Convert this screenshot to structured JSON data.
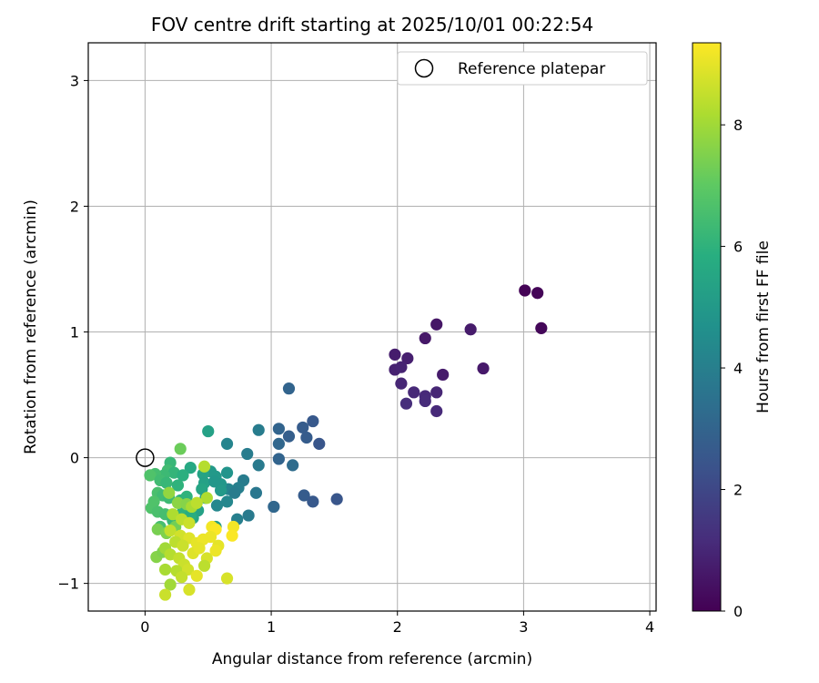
{
  "chart_data": {
    "type": "scatter",
    "title": "FOV centre drift starting at 2025/10/01 00:22:54",
    "xlabel": "Angular distance from reference (arcmin)",
    "ylabel": "Rotation from reference (arcmin)",
    "xlim": [
      -0.45,
      4.05
    ],
    "ylim": [
      -1.22,
      3.3
    ],
    "xticks": [
      0,
      1,
      2,
      3,
      4
    ],
    "yticks": [
      -1,
      0,
      1,
      2,
      3
    ],
    "grid": true,
    "legend": {
      "position": "top-right",
      "label": "Reference platepar"
    },
    "reference_point": {
      "x": 0,
      "y": 0
    },
    "colorbar": {
      "label": "Hours from first FF file",
      "min": 0,
      "max": 9.35,
      "ticks": [
        0,
        2,
        4,
        6,
        8
      ],
      "colormap": "viridis"
    },
    "points": [
      {
        "x": 3.01,
        "y": 1.33,
        "c": 0.05
      },
      {
        "x": 3.11,
        "y": 1.31,
        "c": 0.1
      },
      {
        "x": 3.14,
        "y": 1.03,
        "c": 0.15
      },
      {
        "x": 2.31,
        "y": 1.06,
        "c": 0.55
      },
      {
        "x": 2.58,
        "y": 1.02,
        "c": 0.7
      },
      {
        "x": 2.22,
        "y": 0.95,
        "c": 0.6
      },
      {
        "x": 1.98,
        "y": 0.82,
        "c": 0.75
      },
      {
        "x": 2.08,
        "y": 0.79,
        "c": 0.8
      },
      {
        "x": 1.98,
        "y": 0.7,
        "c": 0.85
      },
      {
        "x": 2.03,
        "y": 0.72,
        "c": 0.9
      },
      {
        "x": 2.68,
        "y": 0.71,
        "c": 0.65
      },
      {
        "x": 2.36,
        "y": 0.66,
        "c": 0.7
      },
      {
        "x": 2.03,
        "y": 0.59,
        "c": 1.0
      },
      {
        "x": 2.13,
        "y": 0.52,
        "c": 1.05
      },
      {
        "x": 2.22,
        "y": 0.49,
        "c": 1.1
      },
      {
        "x": 2.31,
        "y": 0.52,
        "c": 1.0
      },
      {
        "x": 2.22,
        "y": 0.45,
        "c": 1.15
      },
      {
        "x": 2.07,
        "y": 0.43,
        "c": 1.2
      },
      {
        "x": 2.31,
        "y": 0.37,
        "c": 1.1
      },
      {
        "x": 1.14,
        "y": 0.55,
        "c": 3.0
      },
      {
        "x": 1.33,
        "y": 0.29,
        "c": 2.6
      },
      {
        "x": 1.25,
        "y": 0.24,
        "c": 2.7
      },
      {
        "x": 1.06,
        "y": 0.23,
        "c": 3.0
      },
      {
        "x": 1.14,
        "y": 0.17,
        "c": 2.8
      },
      {
        "x": 1.28,
        "y": 0.16,
        "c": 2.7
      },
      {
        "x": 1.06,
        "y": 0.11,
        "c": 3.1
      },
      {
        "x": 1.38,
        "y": 0.11,
        "c": 2.5
      },
      {
        "x": 1.06,
        "y": -0.01,
        "c": 3.0
      },
      {
        "x": 1.17,
        "y": -0.06,
        "c": 3.3
      },
      {
        "x": 1.26,
        "y": -0.3,
        "c": 2.7
      },
      {
        "x": 1.33,
        "y": -0.35,
        "c": 2.6
      },
      {
        "x": 1.52,
        "y": -0.33,
        "c": 2.5
      },
      {
        "x": 1.02,
        "y": -0.39,
        "c": 3.1
      },
      {
        "x": 0.9,
        "y": 0.22,
        "c": 3.9
      },
      {
        "x": 0.65,
        "y": 0.11,
        "c": 4.2
      },
      {
        "x": 0.81,
        "y": 0.03,
        "c": 3.9
      },
      {
        "x": 0.9,
        "y": -0.06,
        "c": 3.8
      },
      {
        "x": 0.78,
        "y": -0.18,
        "c": 3.9
      },
      {
        "x": 0.74,
        "y": -0.24,
        "c": 4.0
      },
      {
        "x": 0.66,
        "y": -0.25,
        "c": 4.2
      },
      {
        "x": 0.71,
        "y": -0.28,
        "c": 3.9
      },
      {
        "x": 0.88,
        "y": -0.28,
        "c": 3.7
      },
      {
        "x": 0.65,
        "y": -0.35,
        "c": 4.3
      },
      {
        "x": 0.57,
        "y": -0.38,
        "c": 4.3
      },
      {
        "x": 0.73,
        "y": -0.49,
        "c": 4.0
      },
      {
        "x": 0.82,
        "y": -0.46,
        "c": 3.8
      },
      {
        "x": 0.5,
        "y": 0.21,
        "c": 5.3
      },
      {
        "x": 0.65,
        "y": -0.12,
        "c": 4.8
      },
      {
        "x": 0.56,
        "y": -0.15,
        "c": 5.0
      },
      {
        "x": 0.6,
        "y": -0.21,
        "c": 4.9
      },
      {
        "x": 0.52,
        "y": -0.11,
        "c": 5.0
      },
      {
        "x": 0.46,
        "y": -0.13,
        "c": 5.4
      },
      {
        "x": 0.47,
        "y": -0.2,
        "c": 5.3
      },
      {
        "x": 0.45,
        "y": -0.25,
        "c": 5.5
      },
      {
        "x": 0.48,
        "y": -0.32,
        "c": 5.2
      },
      {
        "x": 0.42,
        "y": -0.42,
        "c": 5.3
      },
      {
        "x": 0.38,
        "y": -0.48,
        "c": 5.5
      },
      {
        "x": 0.56,
        "y": -0.55,
        "c": 5.1
      },
      {
        "x": 0.6,
        "y": -0.26,
        "c": 5.0
      },
      {
        "x": 0.55,
        "y": -0.19,
        "c": 4.9
      },
      {
        "x": 0.36,
        "y": -0.08,
        "c": 5.6
      },
      {
        "x": 0.2,
        "y": -0.04,
        "c": 6.2
      },
      {
        "x": 0.18,
        "y": -0.1,
        "c": 6.4
      },
      {
        "x": 0.23,
        "y": -0.12,
        "c": 6.1
      },
      {
        "x": 0.3,
        "y": -0.14,
        "c": 5.9
      },
      {
        "x": 0.15,
        "y": -0.14,
        "c": 6.3
      },
      {
        "x": 0.08,
        "y": -0.13,
        "c": 6.5
      },
      {
        "x": 0.04,
        "y": -0.14,
        "c": 6.7
      },
      {
        "x": 0.12,
        "y": -0.18,
        "c": 6.4
      },
      {
        "x": 0.17,
        "y": -0.2,
        "c": 6.2
      },
      {
        "x": 0.26,
        "y": -0.22,
        "c": 6.0
      },
      {
        "x": 0.1,
        "y": -0.28,
        "c": 6.6
      },
      {
        "x": 0.14,
        "y": -0.3,
        "c": 6.4
      },
      {
        "x": 0.19,
        "y": -0.32,
        "c": 6.3
      },
      {
        "x": 0.28,
        "y": -0.34,
        "c": 6.0
      },
      {
        "x": 0.33,
        "y": -0.31,
        "c": 6.0
      },
      {
        "x": 0.07,
        "y": -0.35,
        "c": 6.7
      },
      {
        "x": 0.05,
        "y": -0.4,
        "c": 6.7
      },
      {
        "x": 0.1,
        "y": -0.43,
        "c": 6.6
      },
      {
        "x": 0.16,
        "y": -0.45,
        "c": 6.5
      },
      {
        "x": 0.22,
        "y": -0.5,
        "c": 6.2
      },
      {
        "x": 0.3,
        "y": -0.43,
        "c": 6.0
      },
      {
        "x": 0.36,
        "y": -0.46,
        "c": 5.8
      },
      {
        "x": 0.12,
        "y": -0.55,
        "c": 6.5
      },
      {
        "x": 0.28,
        "y": 0.07,
        "c": 7.2
      },
      {
        "x": 0.1,
        "y": -0.57,
        "c": 7.4
      },
      {
        "x": 0.17,
        "y": -0.6,
        "c": 7.5
      },
      {
        "x": 0.24,
        "y": -0.55,
        "c": 7.3
      },
      {
        "x": 0.09,
        "y": -0.79,
        "c": 7.6
      },
      {
        "x": 0.14,
        "y": -0.75,
        "c": 7.5
      },
      {
        "x": 0.19,
        "y": -0.28,
        "c": 7.8
      },
      {
        "x": 0.26,
        "y": -0.36,
        "c": 7.7
      },
      {
        "x": 0.33,
        "y": -0.37,
        "c": 7.6
      },
      {
        "x": 0.37,
        "y": -0.39,
        "c": 8.1
      },
      {
        "x": 0.47,
        "y": -0.07,
        "c": 8.3
      },
      {
        "x": 0.49,
        "y": -0.32,
        "c": 8.2
      },
      {
        "x": 0.41,
        "y": -0.36,
        "c": 8.4
      },
      {
        "x": 0.22,
        "y": -0.45,
        "c": 8.2
      },
      {
        "x": 0.29,
        "y": -0.49,
        "c": 8.4
      },
      {
        "x": 0.35,
        "y": -0.52,
        "c": 8.6
      },
      {
        "x": 0.2,
        "y": -0.58,
        "c": 8.5
      },
      {
        "x": 0.28,
        "y": -0.62,
        "c": 8.7
      },
      {
        "x": 0.35,
        "y": -0.64,
        "c": 8.9
      },
      {
        "x": 0.24,
        "y": -0.67,
        "c": 8.4
      },
      {
        "x": 0.3,
        "y": -0.7,
        "c": 8.6
      },
      {
        "x": 0.41,
        "y": -0.68,
        "c": 9.0
      },
      {
        "x": 0.46,
        "y": -0.65,
        "c": 9.1
      },
      {
        "x": 0.53,
        "y": -0.55,
        "c": 9.2
      },
      {
        "x": 0.56,
        "y": -0.57,
        "c": 9.3
      },
      {
        "x": 0.52,
        "y": -0.63,
        "c": 9.1
      },
      {
        "x": 0.58,
        "y": -0.7,
        "c": 9.0
      },
      {
        "x": 0.7,
        "y": -0.55,
        "c": 9.2
      },
      {
        "x": 0.69,
        "y": -0.62,
        "c": 9.3
      },
      {
        "x": 0.16,
        "y": -0.72,
        "c": 8.0
      },
      {
        "x": 0.2,
        "y": -0.77,
        "c": 8.3
      },
      {
        "x": 0.27,
        "y": -0.8,
        "c": 8.5
      },
      {
        "x": 0.38,
        "y": -0.76,
        "c": 8.9
      },
      {
        "x": 0.43,
        "y": -0.72,
        "c": 9.0
      },
      {
        "x": 0.49,
        "y": -0.8,
        "c": 8.8
      },
      {
        "x": 0.56,
        "y": -0.74,
        "c": 9.1
      },
      {
        "x": 0.31,
        "y": -0.85,
        "c": 8.6
      },
      {
        "x": 0.47,
        "y": -0.86,
        "c": 8.4
      },
      {
        "x": 0.16,
        "y": -0.89,
        "c": 8.1
      },
      {
        "x": 0.25,
        "y": -0.9,
        "c": 8.3
      },
      {
        "x": 0.34,
        "y": -0.89,
        "c": 8.7
      },
      {
        "x": 0.29,
        "y": -0.95,
        "c": 8.5
      },
      {
        "x": 0.41,
        "y": -0.94,
        "c": 9.0
      },
      {
        "x": 0.65,
        "y": -0.96,
        "c": 8.8
      },
      {
        "x": 0.2,
        "y": -1.01,
        "c": 8.0
      },
      {
        "x": 0.35,
        "y": -1.05,
        "c": 8.8
      },
      {
        "x": 0.16,
        "y": -1.09,
        "c": 8.6
      }
    ]
  }
}
